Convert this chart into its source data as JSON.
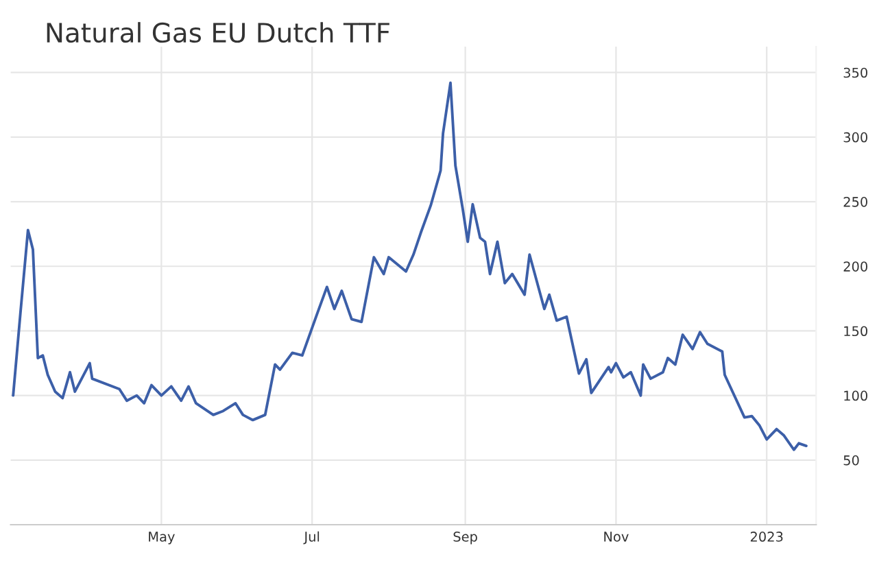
{
  "chart_data": {
    "type": "line",
    "title": "Natural Gas EU Dutch TTF",
    "x": [
      "2022-03-02",
      "2022-03-05",
      "2022-03-08",
      "2022-03-10",
      "2022-03-12",
      "2022-03-14",
      "2022-03-16",
      "2022-03-19",
      "2022-03-22",
      "2022-03-25",
      "2022-03-27",
      "2022-04-02",
      "2022-04-03",
      "2022-04-14",
      "2022-04-17",
      "2022-04-21",
      "2022-04-24",
      "2022-04-27",
      "2022-05-01",
      "2022-05-05",
      "2022-05-09",
      "2022-05-12",
      "2022-05-15",
      "2022-05-22",
      "2022-05-26",
      "2022-05-31",
      "2022-06-03",
      "2022-06-07",
      "2022-06-12",
      "2022-06-16",
      "2022-06-18",
      "2022-06-23",
      "2022-06-27",
      "2022-07-03",
      "2022-07-07",
      "2022-07-10",
      "2022-07-13",
      "2022-07-17",
      "2022-07-21",
      "2022-07-26",
      "2022-07-30",
      "2022-08-01",
      "2022-08-08",
      "2022-08-11",
      "2022-08-14",
      "2022-08-18",
      "2022-08-22",
      "2022-08-23",
      "2022-08-26",
      "2022-08-28",
      "2022-08-31",
      "2022-09-02",
      "2022-09-04",
      "2022-09-07",
      "2022-09-09",
      "2022-09-11",
      "2022-09-14",
      "2022-09-17",
      "2022-09-20",
      "2022-09-25",
      "2022-09-27",
      "2022-10-03",
      "2022-10-05",
      "2022-10-08",
      "2022-10-12",
      "2022-10-17",
      "2022-10-20",
      "2022-10-22",
      "2022-10-29",
      "2022-10-30",
      "2022-11-01",
      "2022-11-04",
      "2022-11-07",
      "2022-11-11",
      "2022-11-12",
      "2022-11-15",
      "2022-11-20",
      "2022-11-22",
      "2022-11-25",
      "2022-11-28",
      "2022-12-02",
      "2022-12-05",
      "2022-12-08",
      "2022-12-14",
      "2022-12-15",
      "2022-12-23",
      "2022-12-26",
      "2022-12-29",
      "2023-01-01",
      "2023-01-05",
      "2023-01-08",
      "2023-01-12",
      "2023-01-14",
      "2023-01-17"
    ],
    "series": [
      {
        "color": "#3c5fa8",
        "values": [
          100,
          165,
          228,
          213,
          129,
          131,
          116,
          103,
          98,
          118,
          103,
          125,
          113,
          105,
          96,
          100,
          94,
          108,
          100,
          107,
          96,
          107,
          94,
          85,
          88,
          94,
          85,
          81,
          85,
          124,
          120,
          133,
          131,
          163,
          184,
          167,
          181,
          159,
          157,
          207,
          194,
          207,
          196,
          209,
          226,
          247,
          274,
          303,
          342,
          278,
          244,
          219,
          248,
          222,
          219,
          194,
          219,
          187,
          194,
          178,
          209,
          167,
          178,
          158,
          161,
          117,
          128,
          102,
          122,
          118,
          125,
          114,
          118,
          100,
          124,
          113,
          118,
          129,
          124,
          147,
          136,
          149,
          140,
          134,
          116,
          83,
          84,
          77,
          66,
          74,
          69,
          58,
          63,
          61
        ]
      }
    ],
    "xlim": [
      "2022-03-01",
      "2023-01-21"
    ],
    "xticks": [
      {
        "value": "2022-05-01",
        "label": "May"
      },
      {
        "value": "2022-07-01",
        "label": "Jul"
      },
      {
        "value": "2022-09-01",
        "label": "Sep"
      },
      {
        "value": "2022-11-01",
        "label": "Nov"
      },
      {
        "value": "2023-01-01",
        "label": "2023"
      }
    ],
    "ylim": [
      0,
      370
    ],
    "yticks": [
      50,
      100,
      150,
      200,
      250,
      300,
      350
    ],
    "grid": true,
    "marker": "none",
    "line_style": "solid"
  }
}
